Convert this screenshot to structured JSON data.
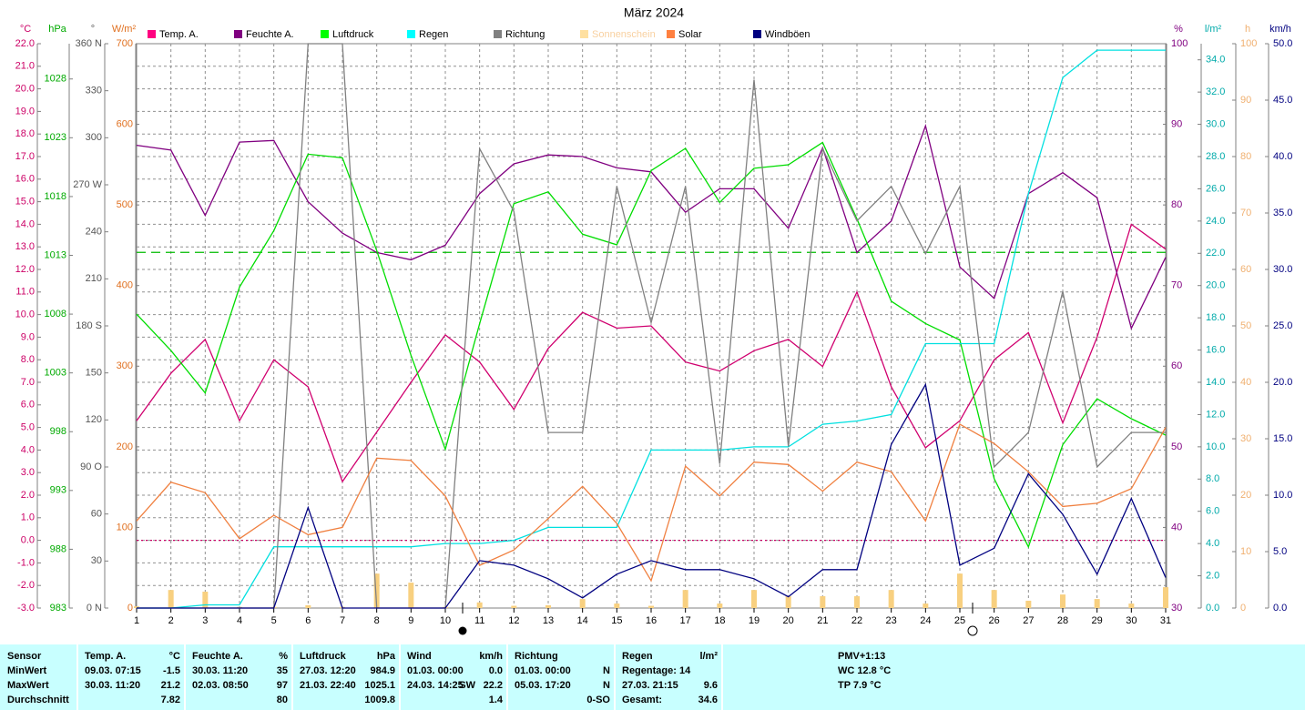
{
  "chart_data": {
    "type": "line",
    "title": "März 2024",
    "x": [
      1,
      2,
      3,
      4,
      5,
      6,
      7,
      8,
      9,
      10,
      11,
      12,
      13,
      14,
      15,
      16,
      17,
      18,
      19,
      20,
      21,
      22,
      23,
      24,
      25,
      26,
      27,
      28,
      29,
      30,
      31
    ],
    "xlim": [
      1,
      31
    ],
    "grid": true,
    "axes": [
      {
        "label": "°C",
        "side": "left",
        "color": "#cc0066",
        "lim": [
          -3,
          22
        ],
        "ticks": [
          {
            "value": -3,
            "label": "-3.0"
          },
          {
            "value": -2,
            "label": "-2.0"
          },
          {
            "value": -1,
            "label": "-1.0"
          },
          {
            "value": 0,
            "label": "0.0"
          },
          {
            "value": 1,
            "label": "1.0"
          },
          {
            "value": 2,
            "label": "2.0"
          },
          {
            "value": 3,
            "label": "3.0"
          },
          {
            "value": 4,
            "label": "4.0"
          },
          {
            "value": 5,
            "label": "5.0"
          },
          {
            "value": 6,
            "label": "6.0"
          },
          {
            "value": 7,
            "label": "7.0"
          },
          {
            "value": 8,
            "label": "8.0"
          },
          {
            "value": 9,
            "label": "9.0"
          },
          {
            "value": 10,
            "label": "10.0"
          },
          {
            "value": 11,
            "label": "11.0"
          },
          {
            "value": 12,
            "label": "12.0"
          },
          {
            "value": 13,
            "label": "13.0"
          },
          {
            "value": 14,
            "label": "14.0"
          },
          {
            "value": 15,
            "label": "15.0"
          },
          {
            "value": 16,
            "label": "16.0"
          },
          {
            "value": 17,
            "label": "17.0"
          },
          {
            "value": 18,
            "label": "18.0"
          },
          {
            "value": 19,
            "label": "19.0"
          },
          {
            "value": 20,
            "label": "20.0"
          },
          {
            "value": 21,
            "label": "21.0"
          },
          {
            "value": 22,
            "label": "22.0"
          }
        ]
      },
      {
        "label": "hPa",
        "side": "left",
        "color": "#00aa00",
        "lim": [
          983,
          1031
        ],
        "ticks": [
          983,
          988,
          993,
          998,
          1003,
          1008,
          1013,
          1018,
          1023,
          1028
        ]
      },
      {
        "label": "°",
        "side": "left",
        "color": "#555555",
        "lim": [
          0,
          360
        ],
        "ticks": [
          {
            "value": 0,
            "label": "0 N"
          },
          30,
          60,
          {
            "value": 90,
            "label": "90 O"
          },
          120,
          150,
          {
            "value": 180,
            "label": "180 S"
          },
          210,
          240,
          {
            "value": 270,
            "label": "270 W"
          },
          300,
          330,
          {
            "value": 360,
            "label": "360 N"
          }
        ]
      },
      {
        "label": "W/m²",
        "side": "left",
        "color": "#e07020",
        "lim": [
          0,
          700
        ],
        "ticks": [
          0,
          100,
          200,
          300,
          400,
          500,
          600,
          700
        ]
      },
      {
        "label": "%",
        "side": "right",
        "color": "#800080",
        "lim": [
          30,
          100
        ],
        "ticks": [
          30,
          40,
          50,
          60,
          70,
          80,
          90,
          100
        ]
      },
      {
        "label": "l/m²",
        "side": "right",
        "color": "#00aaaa",
        "lim": [
          0,
          35
        ],
        "ticks": [
          {
            "value": 0,
            "label": "0.0"
          },
          {
            "value": 2,
            "label": "2.0"
          },
          {
            "value": 4,
            "label": "4.0"
          },
          {
            "value": 6,
            "label": "6.0"
          },
          {
            "value": 8,
            "label": "8.0"
          },
          {
            "value": 10,
            "label": "10.0"
          },
          {
            "value": 12,
            "label": "12.0"
          },
          {
            "value": 14,
            "label": "14.0"
          },
          {
            "value": 16,
            "label": "16.0"
          },
          {
            "value": 18,
            "label": "18.0"
          },
          {
            "value": 20,
            "label": "20.0"
          },
          {
            "value": 22,
            "label": "22.0"
          },
          {
            "value": 24,
            "label": "24.0"
          },
          {
            "value": 26,
            "label": "26.0"
          },
          {
            "value": 28,
            "label": "28.0"
          },
          {
            "value": 30,
            "label": "30.0"
          },
          {
            "value": 32,
            "label": "32.0"
          },
          {
            "value": 34,
            "label": "34.0"
          }
        ]
      },
      {
        "label": "h",
        "side": "right",
        "color": "#f0b070",
        "lim": [
          0,
          100
        ],
        "ticks": [
          0,
          10,
          20,
          30,
          40,
          50,
          60,
          70,
          80,
          90,
          100
        ]
      },
      {
        "label": "km/h",
        "side": "right",
        "color": "#000080",
        "lim": [
          0,
          50
        ],
        "ticks": [
          {
            "value": 0,
            "label": "0.0"
          },
          {
            "value": 5,
            "label": "5.0"
          },
          {
            "value": 10,
            "label": "10.0"
          },
          {
            "value": 15,
            "label": "15.0"
          },
          {
            "value": 20,
            "label": "20.0"
          },
          {
            "value": 25,
            "label": "25.0"
          },
          {
            "value": 30,
            "label": "30.0"
          },
          {
            "value": 35,
            "label": "35.0"
          },
          {
            "value": 40,
            "label": "40.0"
          },
          {
            "value": 45,
            "label": "45.0"
          },
          {
            "value": 50,
            "label": "50.0"
          }
        ]
      }
    ],
    "reference_lines": [
      {
        "axis": 1,
        "value": 1013.25,
        "color": "#00bb00",
        "dash": "10,6"
      },
      {
        "axis": 0,
        "value": 0,
        "color": "#cc0066",
        "dash": "2,3"
      }
    ],
    "series": [
      {
        "name": "Temp. A.",
        "color": "#d0006f",
        "legend_color": "#ff0080",
        "axis": 0,
        "values": [
          5.3,
          7.4,
          8.9,
          5.3,
          8.0,
          6.8,
          2.6,
          4.8,
          7.0,
          9.1,
          7.9,
          5.8,
          8.5,
          10.1,
          9.4,
          9.5,
          7.9,
          7.5,
          8.4,
          8.9,
          7.7,
          11.0,
          6.8,
          4.1,
          5.3,
          8.0,
          9.2,
          5.2,
          9.0,
          14.0,
          12.9
        ]
      },
      {
        "name": "Feuchte A.",
        "color": "#800080",
        "legend_color": "#800080",
        "axis": 4,
        "values": [
          87.4,
          86.8,
          78.7,
          87.8,
          88.0,
          80.4,
          76.5,
          74.1,
          73.2,
          75.0,
          81.4,
          85.1,
          86.2,
          86.0,
          84.6,
          84.1,
          79.1,
          82.0,
          82.0,
          77.1,
          87.1,
          74.1,
          78.0,
          89.8,
          72.3,
          68.4,
          81.4,
          84.0,
          80.9,
          64.7,
          73.5
        ]
      },
      {
        "name": "Luftdruck",
        "color": "#00dd00",
        "legend_color": "#00ff00",
        "axis": 1,
        "values": [
          1008.0,
          1004.9,
          1001.3,
          1010.3,
          1015.1,
          1021.6,
          1021.3,
          1013.4,
          1004.5,
          996.5,
          1007.2,
          1017.4,
          1018.4,
          1014.8,
          1013.9,
          1020.2,
          1022.1,
          1017.5,
          1020.4,
          1020.7,
          1022.6,
          1016.1,
          1009.1,
          1007.2,
          1005.8,
          994.0,
          988.2,
          996.9,
          1000.8,
          999.1,
          997.7
        ]
      },
      {
        "name": "Regen",
        "color": "#00e0e0",
        "legend_color": "#00ffff",
        "axis": 5,
        "values": [
          0,
          0,
          0.2,
          0.2,
          3.8,
          3.8,
          3.8,
          3.8,
          3.8,
          4.0,
          4.0,
          4.2,
          5.0,
          5.0,
          5.0,
          9.8,
          9.8,
          9.8,
          10.0,
          10.0,
          11.4,
          11.6,
          12.0,
          16.4,
          16.4,
          16.4,
          25.7,
          32.9,
          34.6,
          34.6,
          34.6
        ]
      },
      {
        "name": "Richtung",
        "color": "#808080",
        "legend_color": "#808080",
        "axis": 2,
        "values": [
          0,
          0,
          0,
          0,
          0,
          360,
          360,
          0,
          0,
          0,
          293,
          253,
          112,
          112,
          269,
          182,
          269,
          92,
          337,
          103,
          293,
          247,
          269,
          226,
          269,
          90,
          112,
          202,
          90,
          112,
          112
        ]
      },
      {
        "name": "Sonnenschein",
        "color": "#f8d080",
        "legend_color": "#ffe0a0",
        "legend_text_color": "#f8d0a0",
        "axis": 6,
        "type": "bar",
        "values": [
          0.3,
          3.2,
          2.9,
          0.2,
          0.2,
          0.5,
          0.2,
          6.1,
          4.5,
          0.2,
          1.0,
          0.4,
          0.5,
          1.6,
          0.8,
          0.4,
          3.2,
          0.8,
          3.2,
          2.1,
          2.1,
          2.1,
          3.2,
          0.8,
          6.1,
          3.2,
          1.3,
          2.4,
          1.6,
          0.8,
          3.7
        ]
      },
      {
        "name": "Solar",
        "color": "#f08040",
        "legend_color": "#ff8040",
        "axis": 3,
        "values": [
          108,
          156,
          143,
          86,
          115,
          91,
          100,
          186,
          183,
          139,
          53,
          72,
          111,
          151,
          105,
          34,
          176,
          139,
          181,
          178,
          145,
          181,
          169,
          108,
          228,
          204,
          169,
          126,
          130,
          148,
          224
        ]
      },
      {
        "name": "Windböen",
        "color": "#000080",
        "legend_color": "#000080",
        "axis": 7,
        "values": [
          0,
          0,
          0,
          0,
          0,
          8.9,
          0,
          0,
          0,
          0,
          4.2,
          3.8,
          2.6,
          0.9,
          3.0,
          4.2,
          3.4,
          3.4,
          2.6,
          1.0,
          3.4,
          3.4,
          14.5,
          19.8,
          3.8,
          5.3,
          11.9,
          8.3,
          3.0,
          9.7,
          2.7
        ]
      }
    ]
  },
  "stats_table": {
    "row_labels": [
      "Sensor",
      "MinWert",
      "MaxWert",
      "Durchschnitt"
    ],
    "columns": [
      {
        "header": "Temp. A.",
        "unit": "°C",
        "cells": [
          [
            "09.03.  07:15",
            "-1.5"
          ],
          [
            "30.03.  11:20",
            "21.2"
          ],
          [
            "7.82"
          ]
        ]
      },
      {
        "header": "Feuchte A.",
        "unit": "%",
        "cells": [
          [
            "30.03.  11:20",
            "35"
          ],
          [
            "02.03.  08:50",
            "97"
          ],
          [
            "80"
          ]
        ]
      },
      {
        "header": "Luftdruck",
        "unit": "hPa",
        "cells": [
          [
            "27.03.  12:20",
            "984.9"
          ],
          [
            "21.03.  22:40",
            "1025.1"
          ],
          [
            "1009.8"
          ]
        ]
      },
      {
        "header": "Wind",
        "unit": "km/h",
        "cells": [
          [
            "01.03.  00:00",
            "0.0"
          ],
          [
            "24.03.  14:25",
            "SW",
            "22.2"
          ],
          [
            "1.4"
          ]
        ]
      },
      {
        "header": "Richtung",
        "cells": [
          [
            "01.03.  00:00",
            "N"
          ],
          [
            "05.03.  17:20",
            "N"
          ],
          [
            "0-SO"
          ]
        ]
      },
      {
        "header": "Regen",
        "unit": "l/m²",
        "cells": [
          [
            "Regentage: 14"
          ],
          [
            "27.03.  21:15",
            "9.6"
          ],
          [
            "Gesamt:",
            "34.6"
          ]
        ]
      }
    ],
    "pmv": {
      "title": "PMV+1:13",
      "lines": [
        "WC 12.8 °C",
        "TP 7.9 °C"
      ]
    }
  }
}
